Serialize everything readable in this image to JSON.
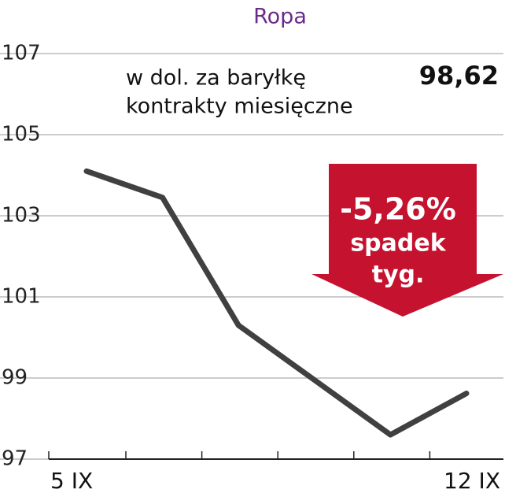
{
  "chart_data": {
    "type": "line",
    "title": "Ropa",
    "subtitle": [
      "w dol. za baryłkę",
      "kontrakty miesięczne"
    ],
    "categories": [
      "5 IX",
      null,
      null,
      null,
      null,
      "12 IX"
    ],
    "values": [
      104.1,
      103.45,
      100.3,
      98.95,
      97.6,
      98.62
    ],
    "value_labels": [
      null,
      null,
      null,
      null,
      null,
      "98,62"
    ],
    "color": "#404040",
    "ylim": [
      97,
      107
    ],
    "yticks": [
      97,
      99,
      101,
      103,
      105,
      107
    ],
    "grid": true,
    "annotations": [
      "-5,26%",
      "spadek",
      "tyg."
    ]
  }
}
